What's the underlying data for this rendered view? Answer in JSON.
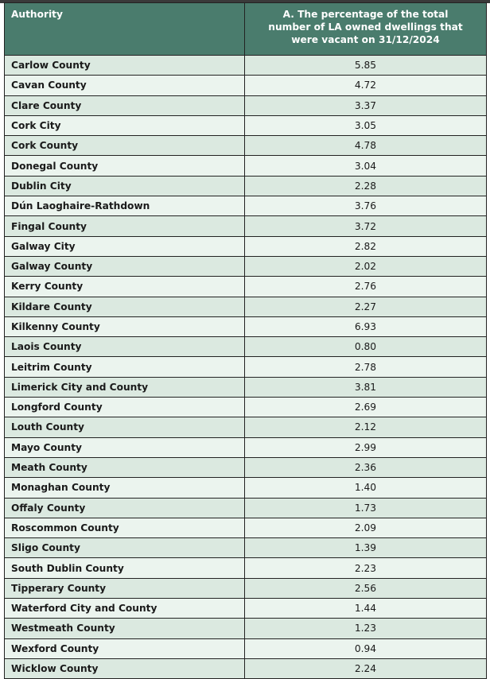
{
  "table": {
    "headers": [
      "Authority",
      "A. The percentage of the total number of LA owned dwellings that were vacant on 31/12/2024"
    ],
    "rows": [
      [
        "Carlow County",
        "5.85"
      ],
      [
        "Cavan County",
        "4.72"
      ],
      [
        "Clare County",
        "3.37"
      ],
      [
        "Cork City",
        "3.05"
      ],
      [
        "Cork County",
        "4.78"
      ],
      [
        "Donegal County",
        "3.04"
      ],
      [
        "Dublin City",
        "2.28"
      ],
      [
        "Dún Laoghaire-Rathdown",
        "3.76"
      ],
      [
        "Fingal County",
        "3.72"
      ],
      [
        "Galway City",
        "2.82"
      ],
      [
        "Galway County",
        "2.02"
      ],
      [
        "Kerry County",
        "2.76"
      ],
      [
        "Kildare County",
        "2.27"
      ],
      [
        "Kilkenny County",
        "6.93"
      ],
      [
        "Laois County",
        "0.80"
      ],
      [
        "Leitrim County",
        "2.78"
      ],
      [
        "Limerick City and County",
        "3.81"
      ],
      [
        "Longford County",
        "2.69"
      ],
      [
        "Louth County",
        "2.12"
      ],
      [
        "Mayo County",
        "2.99"
      ],
      [
        "Meath County",
        "2.36"
      ],
      [
        "Monaghan County",
        "1.40"
      ],
      [
        "Offaly County",
        "1.73"
      ],
      [
        "Roscommon County",
        "2.09"
      ],
      [
        "Sligo County",
        "1.39"
      ],
      [
        "South Dublin County",
        "2.23"
      ],
      [
        "Tipperary County",
        "2.56"
      ],
      [
        "Waterford City and County",
        "1.44"
      ],
      [
        "Westmeath County",
        "1.23"
      ],
      [
        "Wexford County",
        "0.94"
      ],
      [
        "Wicklow County",
        "2.24"
      ]
    ]
  },
  "colors": {
    "header_bg": "#4a7c6d",
    "row_odd": "#dbe9e0",
    "row_even": "#ebf4ee"
  }
}
